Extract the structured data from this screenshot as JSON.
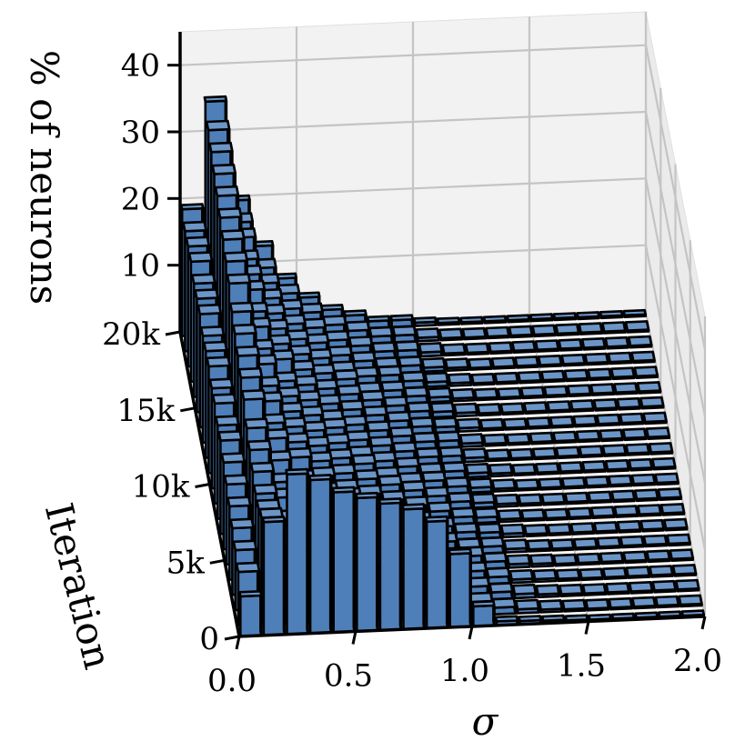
{
  "chart_data": {
    "type": "bar3d",
    "xlabel": "σ",
    "ylabel": "Iteration",
    "zlabel": "% of neurons",
    "x_ticks": [
      "0.0",
      "0.5",
      "1.0",
      "1.5",
      "2.0"
    ],
    "x_tick_values": [
      0.0,
      0.5,
      1.0,
      1.5,
      2.0
    ],
    "y_ticks": [
      "0",
      "5k",
      "10k",
      "15k",
      "20k"
    ],
    "y_tick_values": [
      0,
      5000,
      10000,
      15000,
      20000
    ],
    "z_ticks": [
      "10",
      "20",
      "30",
      "40"
    ],
    "z_tick_values": [
      10,
      20,
      30,
      40
    ],
    "xlim": [
      0.0,
      2.0
    ],
    "ylim": [
      0,
      20000
    ],
    "zlim": [
      0,
      45
    ],
    "grid": true,
    "bin_width": 0.1,
    "bar_color": "#4f7fb8",
    "edge_color": "#000000",
    "series": [
      {
        "iteration": 0,
        "values": [
          6,
          17,
          24,
          23,
          21,
          20,
          19,
          18,
          16,
          11,
          3,
          0.6,
          0.5,
          0.4,
          0.3,
          0.2,
          0.1,
          0,
          0,
          0
        ]
      },
      {
        "iteration": 1000,
        "values": [
          8,
          16,
          12,
          11,
          10,
          9,
          8,
          7,
          5,
          3,
          2,
          1,
          0.6,
          0.4,
          0.3,
          0.2,
          0.1,
          0.1,
          0,
          0
        ]
      },
      {
        "iteration": 2000,
        "values": [
          9,
          15,
          11,
          10,
          9,
          8,
          7,
          6,
          4,
          3,
          2,
          1,
          0.6,
          0.4,
          0.3,
          0.2,
          0.1,
          0,
          0,
          0
        ]
      },
      {
        "iteration": 3000,
        "values": [
          10,
          15,
          11,
          10,
          9,
          8,
          6,
          5,
          4,
          3,
          2,
          1,
          0.5,
          0.4,
          0.3,
          0.2,
          0.1,
          0,
          0,
          0
        ]
      },
      {
        "iteration": 4000,
        "values": [
          11,
          16,
          12,
          10,
          9,
          7,
          6,
          5,
          4,
          2,
          2,
          1,
          0.5,
          0.4,
          0.2,
          0.2,
          0.1,
          0,
          0,
          0
        ]
      },
      {
        "iteration": 5000,
        "values": [
          12,
          17,
          12,
          10,
          9,
          7,
          6,
          5,
          3,
          2,
          1,
          1,
          0.5,
          0.3,
          0.2,
          0.1,
          0.1,
          0,
          0,
          0
        ]
      },
      {
        "iteration": 6000,
        "values": [
          13,
          18,
          13,
          10,
          8,
          7,
          5,
          4,
          3,
          2,
          1,
          0.8,
          0.5,
          0.3,
          0.2,
          0.1,
          0,
          0,
          0,
          0
        ]
      },
      {
        "iteration": 7000,
        "values": [
          14,
          20,
          14,
          11,
          8,
          6,
          5,
          4,
          3,
          2,
          1,
          0.8,
          0.4,
          0.3,
          0.2,
          0.1,
          0,
          0,
          0,
          0
        ]
      },
      {
        "iteration": 8000,
        "values": [
          14,
          21,
          14,
          11,
          8,
          6,
          5,
          4,
          3,
          2,
          1,
          0.7,
          0.4,
          0.3,
          0.2,
          0.1,
          0,
          0,
          0,
          0
        ]
      },
      {
        "iteration": 9000,
        "values": [
          15,
          22,
          15,
          11,
          8,
          6,
          5,
          3,
          2,
          2,
          1,
          0.7,
          0.4,
          0.2,
          0.1,
          0.1,
          0,
          0,
          0,
          0
        ]
      },
      {
        "iteration": 10000,
        "values": [
          15,
          23,
          15,
          11,
          8,
          6,
          4,
          3,
          2,
          1,
          1,
          0.6,
          0.4,
          0.2,
          0.1,
          0.1,
          0,
          0,
          0,
          0
        ]
      },
      {
        "iteration": 11000,
        "values": [
          16,
          24,
          16,
          11,
          8,
          6,
          4,
          3,
          2,
          1,
          1,
          0.6,
          0.3,
          0.2,
          0.1,
          0,
          0,
          0,
          0,
          0
        ]
      },
      {
        "iteration": 12000,
        "values": [
          16,
          26,
          16,
          11,
          8,
          5,
          4,
          3,
          2,
          1,
          1,
          0.5,
          0.3,
          0.2,
          0.1,
          0,
          0,
          0,
          0,
          0
        ]
      },
      {
        "iteration": 13000,
        "values": [
          16,
          27,
          17,
          12,
          8,
          5,
          4,
          3,
          2,
          1,
          0.8,
          0.5,
          0.3,
          0.2,
          0.1,
          0,
          0,
          0,
          0,
          0
        ]
      },
      {
        "iteration": 14000,
        "values": [
          17,
          28,
          17,
          12,
          8,
          5,
          4,
          3,
          2,
          1,
          0.8,
          0.5,
          0.3,
          0.2,
          0.1,
          0,
          0,
          0,
          0,
          0
        ]
      },
      {
        "iteration": 15000,
        "values": [
          17,
          29,
          18,
          12,
          8,
          5,
          4,
          2,
          2,
          1,
          0.7,
          0.4,
          0.3,
          0.1,
          0.1,
          0,
          0,
          0,
          0,
          0
        ]
      },
      {
        "iteration": 16000,
        "values": [
          17,
          30,
          18,
          12,
          8,
          5,
          3,
          2,
          2,
          1,
          0.7,
          0.4,
          0.2,
          0.1,
          0,
          0,
          0,
          0,
          0,
          0
        ]
      },
      {
        "iteration": 17000,
        "values": [
          18,
          31,
          18,
          12,
          8,
          5,
          3,
          2,
          1,
          1,
          0.6,
          0.4,
          0.2,
          0.1,
          0,
          0,
          0,
          0,
          0,
          0
        ]
      },
      {
        "iteration": 18000,
        "values": [
          18,
          32,
          19,
          12,
          8,
          5,
          3,
          2,
          1,
          1,
          0.6,
          0.3,
          0.2,
          0.1,
          0,
          0,
          0,
          0,
          0,
          0
        ]
      },
      {
        "iteration": 19000,
        "values": [
          18,
          33,
          19,
          12,
          8,
          5,
          3,
          2,
          1,
          1,
          0.5,
          0.3,
          0.2,
          0.1,
          0,
          0,
          0,
          0,
          0,
          0
        ]
      },
      {
        "iteration": 20000,
        "values": [
          19,
          35,
          20,
          13,
          8,
          5,
          3,
          2,
          1,
          1,
          0.5,
          0.3,
          0.2,
          0.1,
          0,
          0,
          0,
          0,
          0,
          0
        ]
      }
    ]
  }
}
